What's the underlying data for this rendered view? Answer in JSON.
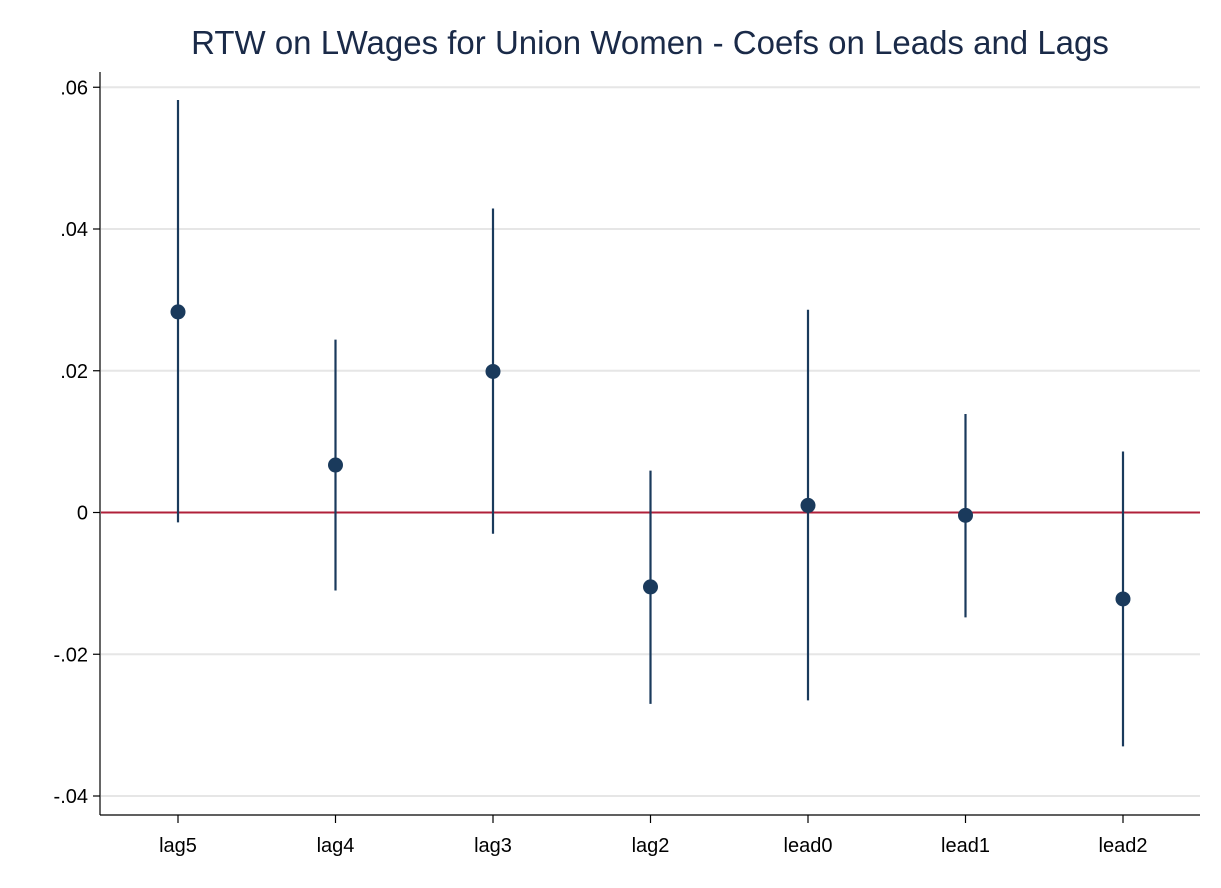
{
  "chart_data": {
    "type": "scatter",
    "title": "RTW on LWages for Union Women - Coefs on Leads and Lags",
    "xlabel": "",
    "ylabel": "",
    "categories": [
      "lag5",
      "lag4",
      "lag3",
      "lag2",
      "lead0",
      "lead1",
      "lead2"
    ],
    "series": [
      {
        "values": [
          0.0283,
          0.0067,
          0.0199,
          -0.0105,
          0.001,
          -0.0004,
          -0.0122
        ],
        "ci_lower": [
          -0.0014,
          -0.011,
          -0.003,
          -0.027,
          -0.0265,
          -0.0148,
          -0.033
        ],
        "ci_upper": [
          0.0582,
          0.0244,
          0.0429,
          0.0059,
          0.0286,
          0.0139,
          0.0086
        ]
      }
    ],
    "ylim": [
      -0.0425,
      0.0605
    ],
    "yticks": [
      -0.04,
      -0.02,
      0,
      0.02,
      0.04,
      0.06
    ],
    "ytick_labels": [
      "-.04",
      "-.02",
      "0",
      ".02",
      ".04",
      ".06"
    ],
    "reference_line": 0,
    "grid": true,
    "legend": "none",
    "colors": {
      "marker": "#1a3a5c",
      "ci": "#1a3a5c",
      "reference_line": "#b0203a",
      "grid": "#e6e6e6",
      "title": "#1a2a48"
    }
  }
}
